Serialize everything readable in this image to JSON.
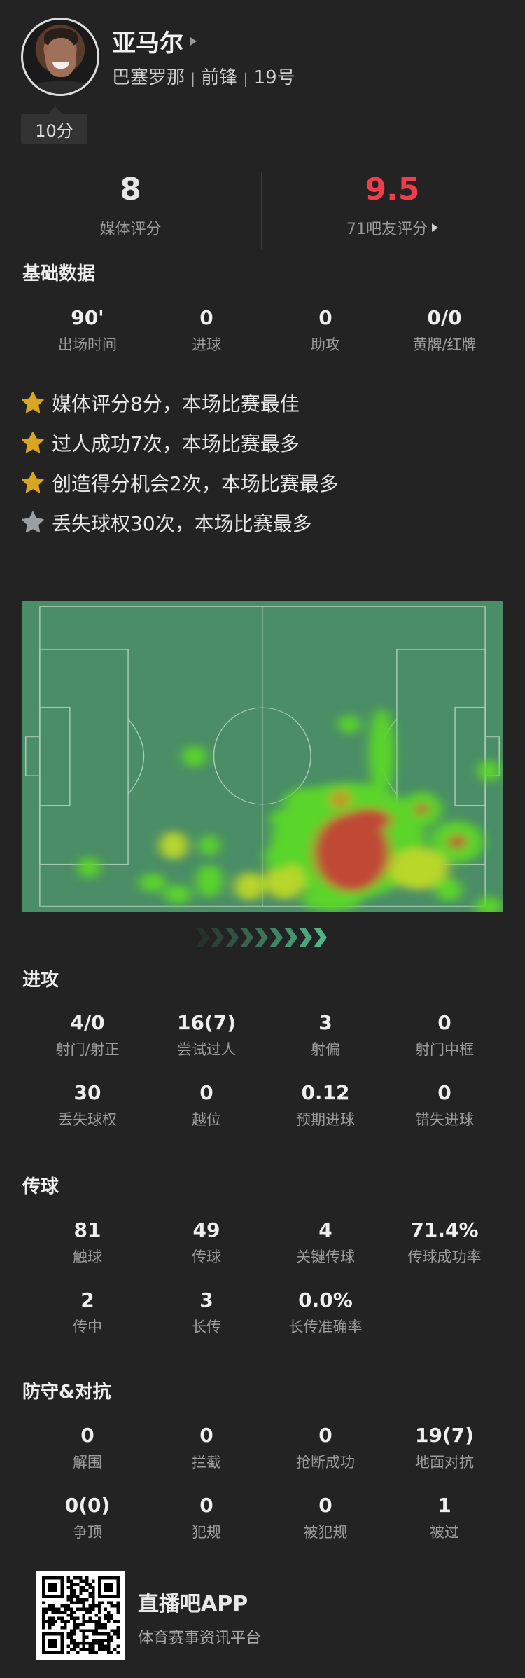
{
  "player": {
    "name": "亚马尔",
    "team": "巴塞罗那",
    "position": "前锋",
    "number": "19号",
    "sub_sep": "|",
    "time_badge": "10分"
  },
  "ratings": {
    "media_value": "8",
    "media_label": "媒体评分",
    "fan_value": "9.5",
    "fan_label": "71吧友评分",
    "fan_color": "#f03c4b"
  },
  "basic": {
    "title": "基础数据",
    "items": [
      {
        "value": "90'",
        "label": "出场时间"
      },
      {
        "value": "0",
        "label": "进球"
      },
      {
        "value": "0",
        "label": "助攻"
      },
      {
        "value": "0/0",
        "label": "黄牌/红牌"
      }
    ]
  },
  "highlights": [
    {
      "text": "媒体评分8分，本场比赛最佳",
      "star": "gold"
    },
    {
      "text": "过人成功7次，本场比赛最多",
      "star": "gold"
    },
    {
      "text": "创造得分机会2次，本场比赛最多",
      "star": "gold"
    },
    {
      "text": "丢失球权30次，本场比赛最多",
      "star": "gray"
    }
  ],
  "colors": {
    "gold_star": "#d9a61f",
    "gray_star": "#9b9ea3",
    "pitch": "#4a8d66"
  },
  "attack": {
    "title": "进攻",
    "items": [
      {
        "value": "4/0",
        "label": "射门/射正"
      },
      {
        "value": "16(7)",
        "label": "尝试过人"
      },
      {
        "value": "3",
        "label": "射偏"
      },
      {
        "value": "0",
        "label": "射门中框"
      },
      {
        "value": "30",
        "label": "丢失球权"
      },
      {
        "value": "0",
        "label": "越位"
      },
      {
        "value": "0.12",
        "label": "预期进球"
      },
      {
        "value": "0",
        "label": "错失进球"
      }
    ]
  },
  "passing": {
    "title": "传球",
    "items": [
      {
        "value": "81",
        "label": "触球"
      },
      {
        "value": "49",
        "label": "传球"
      },
      {
        "value": "4",
        "label": "关键传球"
      },
      {
        "value": "71.4%",
        "label": "传球成功率"
      },
      {
        "value": "2",
        "label": "传中"
      },
      {
        "value": "3",
        "label": "长传"
      },
      {
        "value": "0.0%",
        "label": "长传准确率"
      }
    ]
  },
  "defense": {
    "title": "防守&对抗",
    "items": [
      {
        "value": "0",
        "label": "解围"
      },
      {
        "value": "0",
        "label": "拦截"
      },
      {
        "value": "0",
        "label": "抢断成功"
      },
      {
        "value": "19(7)",
        "label": "地面对抗"
      },
      {
        "value": "0(0)",
        "label": "争顶"
      },
      {
        "value": "0",
        "label": "犯规"
      },
      {
        "value": "0",
        "label": "被犯规"
      },
      {
        "value": "1",
        "label": "被过"
      }
    ]
  },
  "footer": {
    "app_name": "直播吧APP",
    "slogan": "体育赛事资讯平台"
  }
}
